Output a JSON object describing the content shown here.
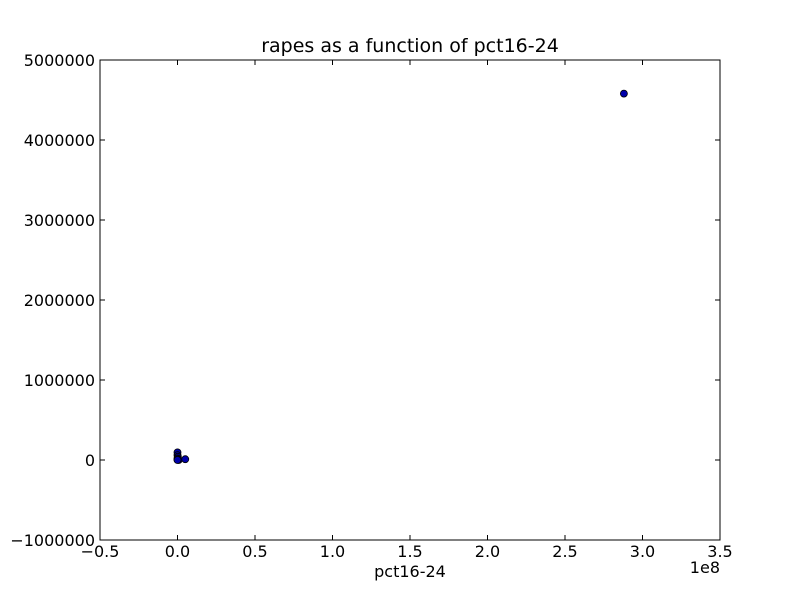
{
  "chart_data": {
    "type": "scatter",
    "title": "rapes as a function of pct16-24",
    "xlabel": "pct16-24",
    "ylabel": "",
    "xlim": [
      -0.5,
      3.5
    ],
    "ylim": [
      -1000000,
      5000000
    ],
    "x_ticks": [
      -0.5,
      0.0,
      0.5,
      1.0,
      1.5,
      2.0,
      2.5,
      3.0,
      3.5
    ],
    "x_tick_labels": [
      "−0.5",
      "0.0",
      "0.5",
      "1.0",
      "1.5",
      "2.0",
      "2.5",
      "3.0",
      "3.5"
    ],
    "x_offset_label": "1e8",
    "y_ticks": [
      -1000000,
      0,
      1000000,
      2000000,
      3000000,
      4000000,
      5000000
    ],
    "y_tick_labels": [
      "−1000000",
      "0",
      "1000000",
      "2000000",
      "3000000",
      "4000000",
      "5000000"
    ],
    "grid": false,
    "marker_color": "#0000aa",
    "points": [
      {
        "x": 0.0,
        "y": 95000
      },
      {
        "x": 0.0,
        "y": 60000
      },
      {
        "x": 0.002,
        "y": 40000
      },
      {
        "x": 0.0,
        "y": 20000
      },
      {
        "x": 0.005,
        "y": 10000
      },
      {
        "x": 0.0,
        "y": 5000
      },
      {
        "x": 0.008,
        "y": 0
      },
      {
        "x": 0.0,
        "y": 0
      },
      {
        "x": 0.05,
        "y": 10000
      },
      {
        "x": 2.88,
        "y": 4580000
      }
    ]
  }
}
